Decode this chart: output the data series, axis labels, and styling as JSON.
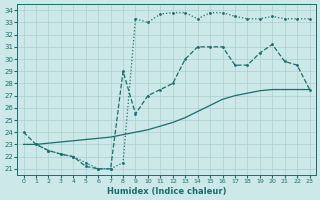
{
  "xlabel": "Humidex (Indice chaleur)",
  "bg_color": "#cce8e8",
  "line_color": "#1a6e6e",
  "grid_color": "#aacfcf",
  "xlim": [
    -0.5,
    23.5
  ],
  "ylim": [
    20.5,
    34.5
  ],
  "xticks": [
    0,
    1,
    2,
    3,
    4,
    5,
    6,
    7,
    8,
    9,
    10,
    11,
    12,
    13,
    14,
    15,
    16,
    17,
    18,
    19,
    20,
    21,
    22,
    23
  ],
  "yticks": [
    21,
    22,
    23,
    24,
    25,
    26,
    27,
    28,
    29,
    30,
    31,
    32,
    33,
    34
  ],
  "line_top_x": [
    1,
    2,
    3,
    4,
    5,
    6,
    7,
    8,
    9,
    10,
    11,
    12,
    13,
    14,
    15,
    16,
    17,
    18,
    19,
    20,
    21,
    22,
    23
  ],
  "line_top_y": [
    23.0,
    22.5,
    22.2,
    22.0,
    21.5,
    21.0,
    21.0,
    21.5,
    33.3,
    33.0,
    33.7,
    33.8,
    33.8,
    33.3,
    33.8,
    33.8,
    33.5,
    33.3,
    33.3,
    33.5,
    33.3,
    33.3,
    33.3
  ],
  "line_mid_x": [
    0,
    1,
    2,
    3,
    4,
    5,
    6,
    7,
    8,
    9,
    10,
    11,
    12,
    13,
    14,
    15,
    16,
    17,
    18,
    19,
    20,
    21,
    22,
    23
  ],
  "line_mid_y": [
    23.0,
    23.0,
    23.1,
    23.2,
    23.3,
    23.4,
    23.5,
    23.6,
    23.8,
    24.0,
    24.2,
    24.5,
    24.8,
    25.2,
    25.7,
    26.2,
    26.7,
    27.0,
    27.2,
    27.4,
    27.5,
    27.5,
    27.5,
    27.5
  ],
  "line_bot_x": [
    0,
    1,
    2,
    3,
    4,
    5,
    6,
    7,
    8,
    9,
    10,
    11,
    12,
    13,
    14,
    15,
    16,
    17,
    18,
    19,
    20,
    21,
    22,
    23
  ],
  "line_bot_y": [
    24.0,
    23.0,
    22.5,
    22.2,
    22.0,
    21.2,
    21.0,
    21.0,
    29.0,
    25.5,
    27.0,
    27.5,
    28.0,
    30.0,
    31.0,
    31.0,
    31.0,
    29.5,
    29.5,
    30.5,
    31.2,
    29.8,
    29.5,
    27.5
  ]
}
